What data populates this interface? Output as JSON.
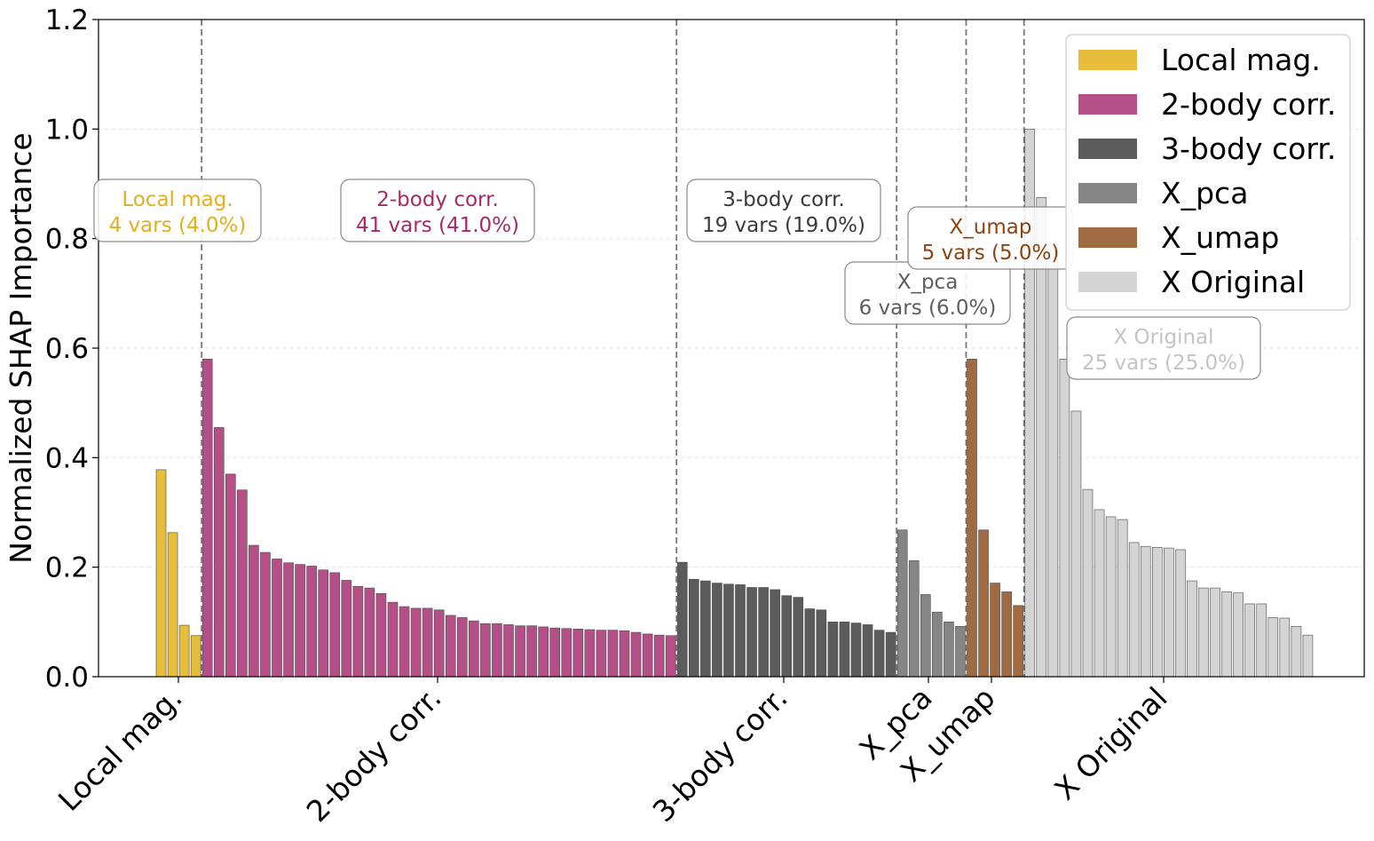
{
  "chart_data": {
    "type": "bar",
    "title": "",
    "xlabel": "",
    "ylabel": "Normalized SHAP Importance",
    "ylim": [
      0,
      1.2
    ],
    "yticks": [
      "0.0",
      "0.2",
      "0.4",
      "0.6",
      "0.8",
      "1.0",
      "1.2"
    ],
    "ytick_values": [
      0,
      0.2,
      0.4,
      0.6,
      0.8,
      1.0,
      1.2
    ],
    "grid": "horizontal dashed",
    "legend_position": "top-right",
    "groups": [
      {
        "name": "Local mag.",
        "color": "#E6BE3C",
        "label_color": "#E0B020",
        "annotation_line1": "Local mag.",
        "annotation_line2": "4 vars (4.0%)",
        "values": [
          0.378,
          0.263,
          0.094,
          0.075
        ]
      },
      {
        "name": "2-body corr.",
        "color": "#B44F87",
        "label_color": "#A42A6A",
        "annotation_line1": "2-body corr.",
        "annotation_line2": "41 vars (41.0%)",
        "values": [
          0.58,
          0.455,
          0.37,
          0.341,
          0.24,
          0.227,
          0.215,
          0.208,
          0.205,
          0.202,
          0.195,
          0.19,
          0.176,
          0.165,
          0.162,
          0.152,
          0.136,
          0.128,
          0.125,
          0.125,
          0.122,
          0.112,
          0.108,
          0.102,
          0.097,
          0.097,
          0.095,
          0.093,
          0.093,
          0.091,
          0.089,
          0.088,
          0.087,
          0.086,
          0.085,
          0.085,
          0.084,
          0.081,
          0.078,
          0.076,
          0.075
        ]
      },
      {
        "name": "3-body corr.",
        "color": "#5C5C5C",
        "label_color": "#3A3A3A",
        "annotation_line1": "3-body corr.",
        "annotation_line2": "19 vars (19.0%)",
        "values": [
          0.209,
          0.178,
          0.175,
          0.171,
          0.169,
          0.168,
          0.163,
          0.163,
          0.159,
          0.148,
          0.145,
          0.124,
          0.122,
          0.1,
          0.1,
          0.098,
          0.095,
          0.085,
          0.081
        ]
      },
      {
        "name": "X_pca",
        "color": "#858585",
        "label_color": "#5E5E5E",
        "annotation_line1": "X_pca",
        "annotation_line2": "6 vars (6.0%)",
        "values": [
          0.268,
          0.212,
          0.15,
          0.118,
          0.1,
          0.092
        ]
      },
      {
        "name": "X_umap",
        "color": "#A06A42",
        "label_color": "#8B4513",
        "annotation_line1": "X_umap",
        "annotation_line2": "5 vars (5.0%)",
        "values": [
          0.58,
          0.268,
          0.171,
          0.155,
          0.13
        ]
      },
      {
        "name": "X Original",
        "color": "#D4D4D4",
        "label_color": "#C4C4C4",
        "annotation_line1": "X Original",
        "annotation_line2": "25 vars (25.0%)",
        "values": [
          1.0,
          0.875,
          0.79,
          0.58,
          0.485,
          0.342,
          0.305,
          0.292,
          0.287,
          0.245,
          0.238,
          0.236,
          0.235,
          0.232,
          0.175,
          0.162,
          0.162,
          0.155,
          0.153,
          0.133,
          0.133,
          0.108,
          0.107,
          0.092,
          0.076
        ]
      }
    ]
  }
}
